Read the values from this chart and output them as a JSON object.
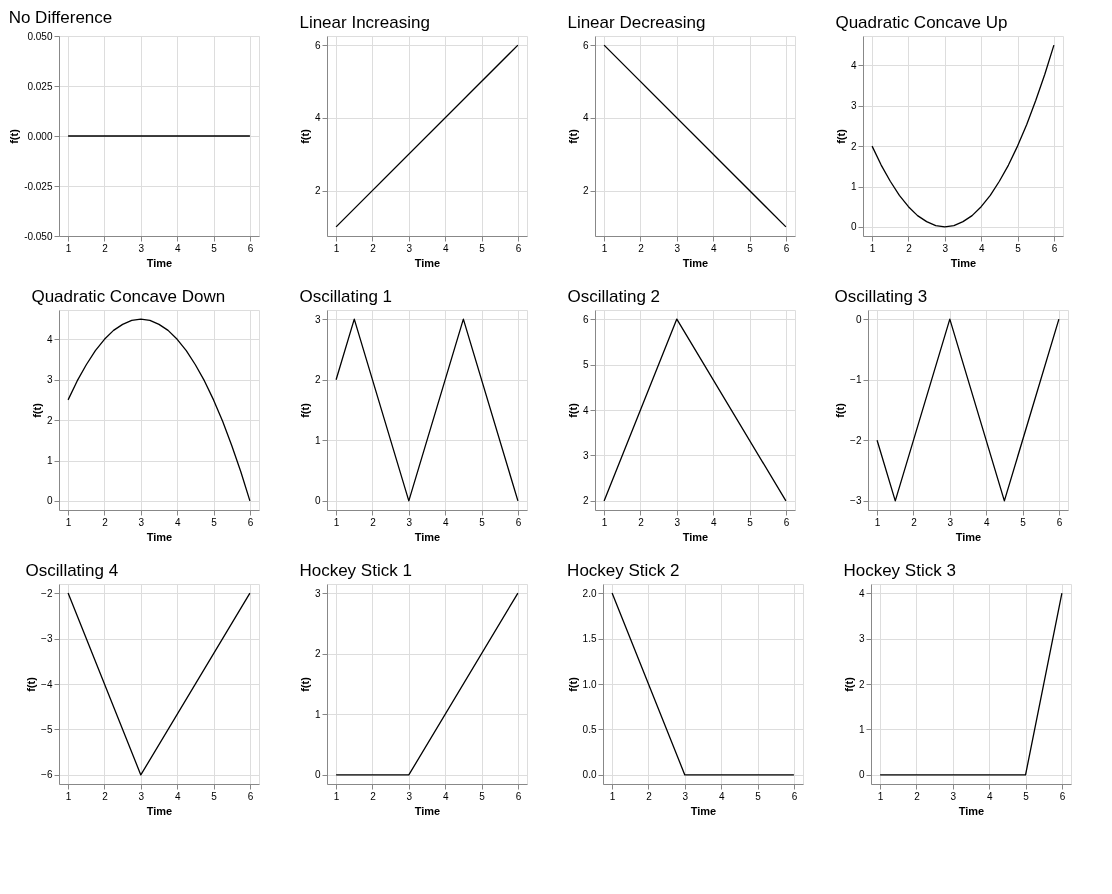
{
  "chart_data": [
    {
      "type": "line",
      "title": "No Difference",
      "xlabel": "Time",
      "ylabel": "f(t)",
      "color": "#000000",
      "grid": true,
      "x": [
        1,
        6
      ],
      "values": [
        0,
        0
      ],
      "xlim": [
        0.75,
        6.25
      ],
      "xticks": [
        1,
        2,
        3,
        4,
        5,
        6
      ],
      "ylim": [
        -0.05,
        0.05
      ],
      "yticks": [
        {
          "value": -0.05,
          "label": "-0.050"
        },
        {
          "value": -0.025,
          "label": "-0.025"
        },
        {
          "value": 0,
          "label": "0.000"
        },
        {
          "value": 0.025,
          "label": "0.025"
        },
        {
          "value": 0.05,
          "label": "0.050"
        }
      ]
    },
    {
      "type": "line",
      "title": "Linear Increasing",
      "xlabel": "Time",
      "ylabel": "f(t)",
      "color": "#000000",
      "grid": true,
      "x": [
        1,
        6
      ],
      "values": [
        1,
        6
      ],
      "xlim": [
        0.75,
        6.25
      ],
      "xticks": [
        1,
        2,
        3,
        4,
        5,
        6
      ],
      "ylim": [
        0.75,
        6.25
      ],
      "yticks": [
        2,
        4,
        6
      ]
    },
    {
      "type": "line",
      "title": "Linear Decreasing",
      "xlabel": "Time",
      "ylabel": "f(t)",
      "color": "#000000",
      "grid": true,
      "x": [
        1,
        6
      ],
      "values": [
        6,
        1
      ],
      "xlim": [
        0.75,
        6.25
      ],
      "xticks": [
        1,
        2,
        3,
        4,
        5,
        6
      ],
      "ylim": [
        0.75,
        6.25
      ],
      "yticks": [
        2,
        4,
        6
      ]
    },
    {
      "type": "line",
      "title": "Quadratic Concave Up",
      "xlabel": "Time",
      "ylabel": "f(t)",
      "color": "#000000",
      "grid": true,
      "x": [
        1,
        1.25,
        1.5,
        1.75,
        2,
        2.25,
        2.5,
        2.75,
        3,
        3.25,
        3.5,
        3.75,
        4,
        4.25,
        4.5,
        4.75,
        5,
        5.25,
        5.5,
        5.75,
        6
      ],
      "values": [
        2,
        1.53,
        1.13,
        0.78,
        0.5,
        0.28,
        0.13,
        0.03,
        0,
        0.03,
        0.13,
        0.28,
        0.5,
        0.78,
        1.13,
        1.53,
        2,
        2.53,
        3.13,
        3.78,
        4.5
      ],
      "xlim": [
        0.75,
        6.25
      ],
      "xticks": [
        1,
        2,
        3,
        4,
        5,
        6
      ],
      "ylim": [
        -0.225,
        4.725
      ],
      "yticks": [
        0,
        1,
        2,
        3,
        4
      ]
    },
    {
      "type": "line",
      "title": "Quadratic Concave Down",
      "xlabel": "Time",
      "ylabel": "f(t)",
      "color": "#000000",
      "grid": true,
      "x": [
        1,
        1.25,
        1.5,
        1.75,
        2,
        2.25,
        2.5,
        2.75,
        3,
        3.25,
        3.5,
        3.75,
        4,
        4.25,
        4.5,
        4.75,
        5,
        5.25,
        5.5,
        5.75,
        6
      ],
      "values": [
        2.5,
        2.97,
        3.37,
        3.72,
        4,
        4.22,
        4.37,
        4.47,
        4.5,
        4.47,
        4.37,
        4.22,
        4,
        3.72,
        3.37,
        2.97,
        2.5,
        1.97,
        1.37,
        0.72,
        0
      ],
      "xlim": [
        0.75,
        6.25
      ],
      "xticks": [
        1,
        2,
        3,
        4,
        5,
        6
      ],
      "ylim": [
        -0.225,
        4.725
      ],
      "yticks": [
        0,
        1,
        2,
        3,
        4
      ]
    },
    {
      "type": "line",
      "title": "Oscillating 1",
      "xlabel": "Time",
      "ylabel": "f(t)",
      "color": "#000000",
      "grid": true,
      "x": [
        1,
        1.5,
        3,
        4.5,
        6
      ],
      "values": [
        2,
        3,
        0,
        3,
        0
      ],
      "xlim": [
        0.75,
        6.25
      ],
      "xticks": [
        1,
        2,
        3,
        4,
        5,
        6
      ],
      "ylim": [
        -0.15,
        3.15
      ],
      "yticks": [
        0,
        1,
        2,
        3
      ]
    },
    {
      "type": "line",
      "title": "Oscillating 2",
      "xlabel": "Time",
      "ylabel": "f(t)",
      "color": "#000000",
      "grid": true,
      "x": [
        1,
        3,
        6
      ],
      "values": [
        2,
        6,
        2
      ],
      "xlim": [
        0.75,
        6.25
      ],
      "xticks": [
        1,
        2,
        3,
        4,
        5,
        6
      ],
      "ylim": [
        1.8,
        6.2
      ],
      "yticks": [
        2,
        3,
        4,
        5,
        6
      ]
    },
    {
      "type": "line",
      "title": "Oscillating 3",
      "xlabel": "Time",
      "ylabel": "f(t)",
      "color": "#000000",
      "grid": true,
      "x": [
        1,
        1.5,
        3,
        4.5,
        6
      ],
      "values": [
        -2,
        -3,
        0,
        -3,
        0
      ],
      "xlim": [
        0.75,
        6.25
      ],
      "xticks": [
        1,
        2,
        3,
        4,
        5,
        6
      ],
      "ylim": [
        -3.15,
        0.15
      ],
      "yticks": [
        -3,
        -2,
        -1,
        0
      ]
    },
    {
      "type": "line",
      "title": "Oscillating 4",
      "xlabel": "Time",
      "ylabel": "f(t)",
      "color": "#000000",
      "grid": true,
      "x": [
        1,
        3,
        6
      ],
      "values": [
        -2,
        -6,
        -2
      ],
      "xlim": [
        0.75,
        6.25
      ],
      "xticks": [
        1,
        2,
        3,
        4,
        5,
        6
      ],
      "ylim": [
        -6.2,
        -1.8
      ],
      "yticks": [
        -6,
        -5,
        -4,
        -3,
        -2
      ]
    },
    {
      "type": "line",
      "title": "Hockey Stick 1",
      "xlabel": "Time",
      "ylabel": "f(t)",
      "color": "#000000",
      "grid": true,
      "x": [
        1,
        3,
        6
      ],
      "values": [
        0,
        0,
        3
      ],
      "xlim": [
        0.75,
        6.25
      ],
      "xticks": [
        1,
        2,
        3,
        4,
        5,
        6
      ],
      "ylim": [
        -0.15,
        3.15
      ],
      "yticks": [
        0,
        1,
        2,
        3
      ]
    },
    {
      "type": "line",
      "title": "Hockey Stick 2",
      "xlabel": "Time",
      "ylabel": "f(t)",
      "color": "#000000",
      "grid": true,
      "x": [
        1,
        3,
        6
      ],
      "values": [
        2,
        0,
        0
      ],
      "xlim": [
        0.75,
        6.25
      ],
      "xticks": [
        1,
        2,
        3,
        4,
        5,
        6
      ],
      "ylim": [
        -0.1,
        2.1
      ],
      "yticks": [
        {
          "value": 0,
          "label": "0.0"
        },
        {
          "value": 0.5,
          "label": "0.5"
        },
        {
          "value": 1,
          "label": "1.0"
        },
        {
          "value": 1.5,
          "label": "1.5"
        },
        {
          "value": 2,
          "label": "2.0"
        }
      ]
    },
    {
      "type": "line",
      "title": "Hockey Stick 3",
      "xlabel": "Time",
      "ylabel": "f(t)",
      "color": "#000000",
      "grid": true,
      "x": [
        1,
        5,
        6
      ],
      "values": [
        0,
        0,
        4
      ],
      "xlim": [
        0.75,
        6.25
      ],
      "xticks": [
        1,
        2,
        3,
        4,
        5,
        6
      ],
      "ylim": [
        -0.2,
        4.2
      ],
      "yticks": [
        0,
        1,
        2,
        3,
        4
      ]
    }
  ]
}
